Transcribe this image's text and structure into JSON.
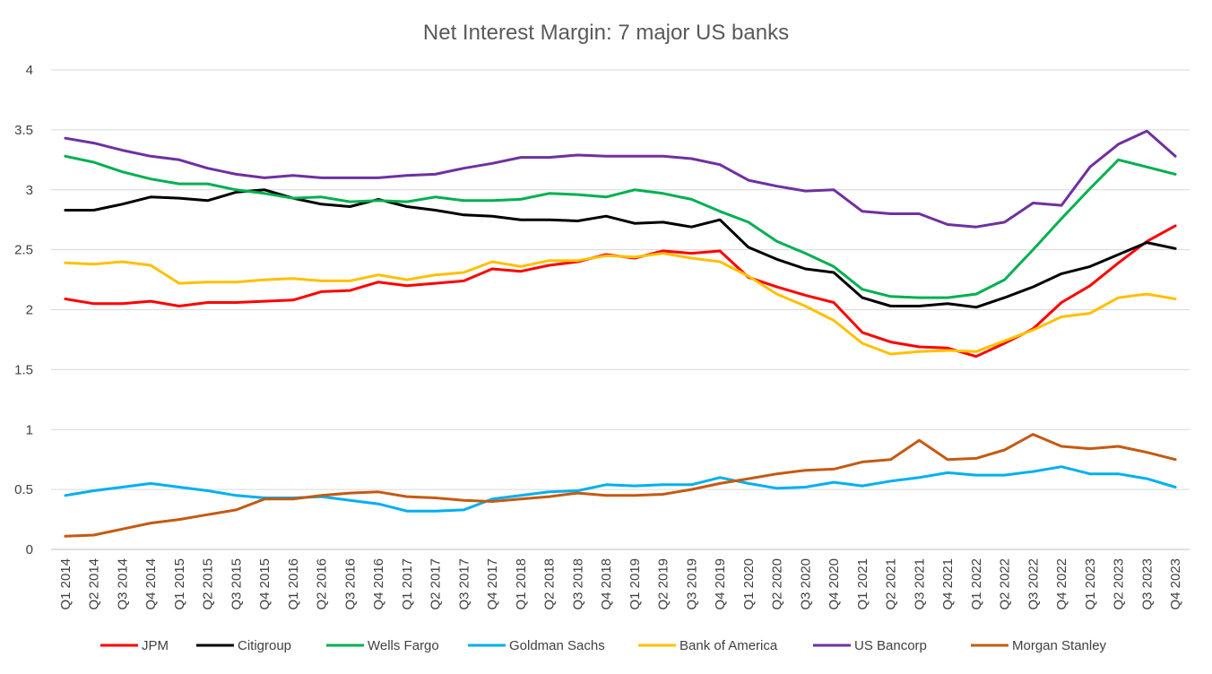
{
  "chart_data": {
    "type": "line",
    "title": "Net Interest Margin: 7 major US banks",
    "xlabel": "",
    "ylabel": "",
    "ylim": [
      0,
      4
    ],
    "yticks": [
      "0",
      "0.5",
      "1",
      "1.5",
      "2",
      "2.5",
      "3",
      "3.5",
      "4"
    ],
    "grid": true,
    "legend_position": "bottom",
    "categories": [
      "Q1 2014",
      "Q2 2014",
      "Q3 2014",
      "Q4 2014",
      "Q1 2015",
      "Q2 2015",
      "Q3 2015",
      "Q4 2015",
      "Q1 2016",
      "Q2 2016",
      "Q3 2016",
      "Q4 2016",
      "Q1 2017",
      "Q2 2017",
      "Q3 2017",
      "Q4 2017",
      "Q1 2018",
      "Q2 2018",
      "Q3 2018",
      "Q4 2018",
      "Q1 2019",
      "Q2 2019",
      "Q3 2019",
      "Q4 2019",
      "Q1 2020",
      "Q2 2020",
      "Q3 2020",
      "Q4 2020",
      "Q1 2021",
      "Q2 2021",
      "Q3 2021",
      "Q4 2021",
      "Q1 2022",
      "Q2 2022",
      "Q3 2022",
      "Q4 2022",
      "Q1 2023",
      "Q2 2023",
      "Q3 2023",
      "Q4 2023"
    ],
    "series": [
      {
        "name": "JPM",
        "color": "#ff0000",
        "values": [
          2.09,
          2.05,
          2.05,
          2.07,
          2.03,
          2.06,
          2.06,
          2.07,
          2.08,
          2.15,
          2.16,
          2.23,
          2.2,
          2.22,
          2.24,
          2.34,
          2.32,
          2.37,
          2.4,
          2.46,
          2.43,
          2.49,
          2.47,
          2.49,
          2.27,
          2.19,
          2.12,
          2.06,
          1.81,
          1.73,
          1.69,
          1.68,
          1.61,
          1.72,
          1.84,
          2.06,
          2.2,
          2.39,
          2.57,
          2.7
        ]
      },
      {
        "name": "Citigroup",
        "color": "#000000",
        "values": [
          2.83,
          2.83,
          2.88,
          2.94,
          2.93,
          2.91,
          2.98,
          3.0,
          2.93,
          2.88,
          2.86,
          2.92,
          2.86,
          2.83,
          2.79,
          2.78,
          2.75,
          2.75,
          2.74,
          2.78,
          2.72,
          2.73,
          2.69,
          2.75,
          2.52,
          2.42,
          2.34,
          2.31,
          2.1,
          2.03,
          2.03,
          2.05,
          2.02,
          2.1,
          2.19,
          2.3,
          2.36,
          2.46,
          2.56,
          2.51
        ]
      },
      {
        "name": "Wells Fargo",
        "color": "#00b050",
        "values": [
          3.28,
          3.23,
          3.15,
          3.09,
          3.05,
          3.05,
          3.0,
          2.97,
          2.93,
          2.94,
          2.9,
          2.91,
          2.9,
          2.94,
          2.91,
          2.91,
          2.92,
          2.97,
          2.96,
          2.94,
          3.0,
          2.97,
          2.92,
          2.82,
          2.73,
          2.57,
          2.47,
          2.36,
          2.17,
          2.11,
          2.1,
          2.1,
          2.13,
          2.25,
          2.5,
          2.76,
          3.01,
          3.25,
          3.19,
          3.13
        ]
      },
      {
        "name": "Goldman Sachs",
        "color": "#00b0f0",
        "values": [
          0.45,
          0.49,
          0.52,
          0.55,
          0.52,
          0.49,
          0.45,
          0.43,
          0.43,
          0.44,
          0.41,
          0.38,
          0.32,
          0.32,
          0.33,
          0.42,
          0.45,
          0.48,
          0.49,
          0.54,
          0.53,
          0.54,
          0.54,
          0.6,
          0.55,
          0.51,
          0.52,
          0.56,
          0.53,
          0.57,
          0.6,
          0.64,
          0.62,
          0.62,
          0.65,
          0.69,
          0.63,
          0.63,
          0.59,
          0.52
        ]
      },
      {
        "name": "Bank of America",
        "color": "#ffc000",
        "values": [
          2.39,
          2.38,
          2.4,
          2.37,
          2.22,
          2.23,
          2.23,
          2.25,
          2.26,
          2.24,
          2.24,
          2.29,
          2.25,
          2.29,
          2.31,
          2.4,
          2.36,
          2.41,
          2.41,
          2.45,
          2.44,
          2.47,
          2.43,
          2.4,
          2.28,
          2.13,
          2.03,
          1.91,
          1.72,
          1.63,
          1.65,
          1.66,
          1.65,
          1.74,
          1.83,
          1.94,
          1.97,
          2.1,
          2.13,
          2.09
        ]
      },
      {
        "name": "US Bancorp",
        "color": "#7030a0",
        "values": [
          3.43,
          3.39,
          3.33,
          3.28,
          3.25,
          3.18,
          3.13,
          3.1,
          3.12,
          3.1,
          3.1,
          3.1,
          3.12,
          3.13,
          3.18,
          3.22,
          3.27,
          3.27,
          3.29,
          3.28,
          3.28,
          3.28,
          3.26,
          3.21,
          3.08,
          3.03,
          2.99,
          3.0,
          2.82,
          2.8,
          2.8,
          2.71,
          2.69,
          2.73,
          2.89,
          2.87,
          3.19,
          3.38,
          3.49,
          3.28
        ]
      },
      {
        "name": "Morgan Stanley",
        "color": "#c55a11",
        "values": [
          0.11,
          0.12,
          0.17,
          0.22,
          0.25,
          0.29,
          0.33,
          0.42,
          0.42,
          0.45,
          0.47,
          0.48,
          0.44,
          0.43,
          0.41,
          0.4,
          0.42,
          0.44,
          0.47,
          0.45,
          0.45,
          0.46,
          0.5,
          0.55,
          0.59,
          0.63,
          0.66,
          0.67,
          0.73,
          0.75,
          0.91,
          0.75,
          0.76,
          0.83,
          0.96,
          0.86,
          0.84,
          0.86,
          0.81,
          0.75
        ]
      }
    ]
  }
}
